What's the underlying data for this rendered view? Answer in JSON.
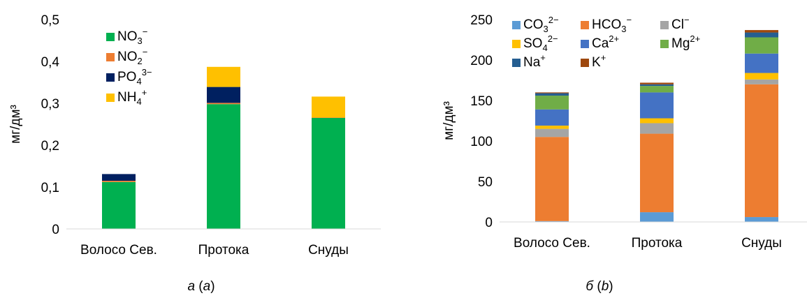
{
  "chart_data": [
    {
      "type": "bar",
      "stacked": true,
      "ylabel": "мг/дм³",
      "ylim": [
        0,
        0.5
      ],
      "yticks": [
        "0",
        "0,1",
        "0,2",
        "0,3",
        "0,4",
        "0,5"
      ],
      "categories": [
        "Волосо Сев.",
        "Протока",
        "Снуды"
      ],
      "legend": {
        "position": "top-left",
        "entries": [
          {
            "base": "NO",
            "sub": "3",
            "sup": "−"
          },
          {
            "base": "NO",
            "sub": "2",
            "sup": "−"
          },
          {
            "base": "PO",
            "sub": "4",
            "sup": "3−"
          },
          {
            "base": "NH",
            "sub": "4",
            "sup": "+"
          }
        ]
      },
      "series": [
        {
          "name": "NO3−",
          "color": "#00b050",
          "values": [
            0.112,
            0.298,
            0.265
          ]
        },
        {
          "name": "NO2−",
          "color": "#ed7d31",
          "values": [
            0.003,
            0.003,
            0.001
          ]
        },
        {
          "name": "PO43−",
          "color": "#002060",
          "values": [
            0.016,
            0.038,
            0.0
          ]
        },
        {
          "name": "NH4+",
          "color": "#ffc000",
          "values": [
            0.0,
            0.048,
            0.05
          ]
        }
      ],
      "grid": false
    },
    {
      "type": "bar",
      "stacked": true,
      "ylabel": "мг/дм³",
      "ylim": [
        0,
        250
      ],
      "yticks": [
        "0",
        "50",
        "100",
        "150",
        "200",
        "250"
      ],
      "categories": [
        "Волосо Сев.",
        "Протока",
        "Снуды"
      ],
      "legend": {
        "position": "top-left",
        "entries": [
          {
            "base": "CO",
            "sub": "3",
            "sup": "2−"
          },
          {
            "base": "HCO",
            "sub": "3",
            "sup": "−"
          },
          {
            "base": "Cl",
            "sub": "",
            "sup": "−"
          },
          {
            "base": "SO",
            "sub": "4",
            "sup": "2−"
          },
          {
            "base": "Ca",
            "sub": "",
            "sup": "2+"
          },
          {
            "base": "Mg",
            "sub": "",
            "sup": "2+"
          },
          {
            "base": "Na",
            "sub": "",
            "sup": "+"
          },
          {
            "base": "K",
            "sub": "",
            "sup": "+"
          }
        ]
      },
      "series": [
        {
          "name": "CO32−",
          "color": "#5b9bd5",
          "values": [
            1,
            12,
            6
          ]
        },
        {
          "name": "HCO3−",
          "color": "#ed7d31",
          "values": [
            104,
            97,
            164
          ]
        },
        {
          "name": "Cl−",
          "color": "#a5a5a5",
          "values": [
            10,
            13,
            6
          ]
        },
        {
          "name": "SO42−",
          "color": "#ffc000",
          "values": [
            4,
            6,
            8
          ]
        },
        {
          "name": "Ca2+",
          "color": "#4472c4",
          "values": [
            20,
            32,
            24
          ]
        },
        {
          "name": "Mg2+",
          "color": "#70ad47",
          "values": [
            17,
            8,
            20
          ]
        },
        {
          "name": "Na+",
          "color": "#255e91",
          "values": [
            3,
            2,
            6
          ]
        },
        {
          "name": "K+",
          "color": "#9e480e",
          "values": [
            1,
            2,
            3
          ]
        }
      ],
      "grid": false
    }
  ],
  "captions": [
    {
      "letter": "а",
      "latin": "a"
    },
    {
      "letter": "б",
      "latin": "b"
    }
  ]
}
